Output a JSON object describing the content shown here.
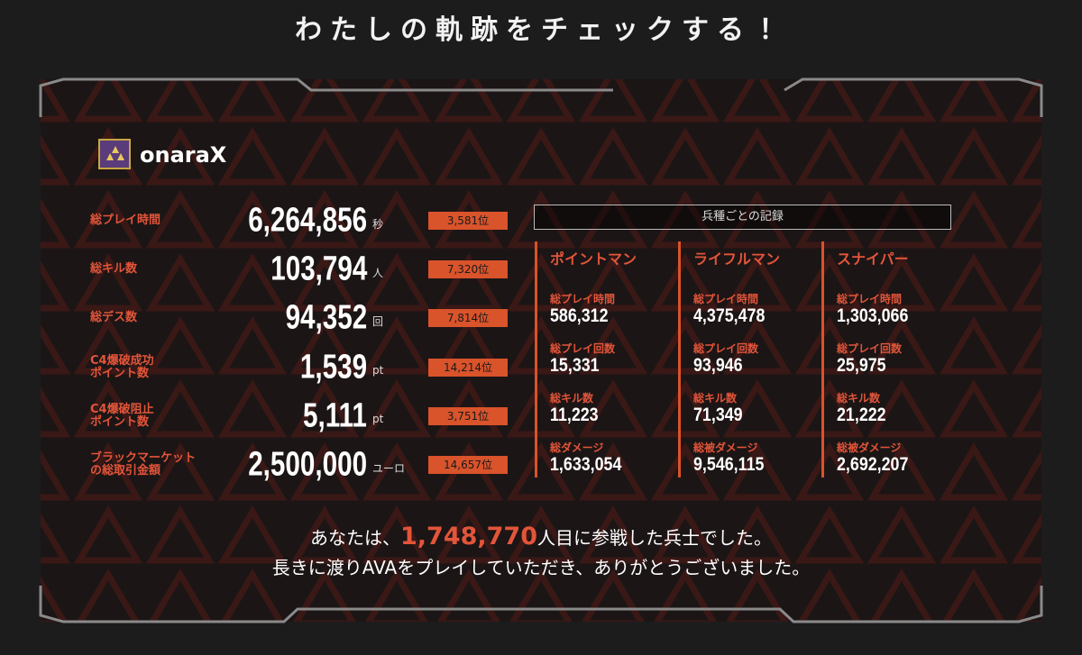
{
  "header": {
    "title": "わたしの軌跡をチェックする！"
  },
  "player": {
    "name": "onaraX"
  },
  "stats": [
    {
      "label": "総プレイ時間",
      "value": "6,264,856",
      "unit": "秒",
      "rank": "3,581位"
    },
    {
      "label": "総キル数",
      "value": "103,794",
      "unit": "人",
      "rank": "7,320位"
    },
    {
      "label": "総デス数",
      "value": "94,352",
      "unit": "回",
      "rank": "7,814位"
    },
    {
      "label": "C4爆破成功\nポイント数",
      "value": "1,539",
      "unit": "pt",
      "rank": "14,214位"
    },
    {
      "label": "C4爆破阻止\nポイント数",
      "value": "5,111",
      "unit": "pt",
      "rank": "3,751位"
    },
    {
      "label": "ブラックマーケット\nの総取引金額",
      "value": "2,500,000",
      "unit": "ユーロ",
      "rank": "14,657位"
    }
  ],
  "classes": {
    "title": "兵種ごとの記録",
    "columns": [
      {
        "name": "ポイントマン",
        "items": [
          {
            "label": "総プレイ時間",
            "value": "586,312"
          },
          {
            "label": "総プレイ回数",
            "value": "15,331"
          },
          {
            "label": "総キル数",
            "value": "11,223"
          },
          {
            "label": "総ダメージ",
            "value": "1,633,054"
          }
        ]
      },
      {
        "name": "ライフルマン",
        "items": [
          {
            "label": "総プレイ時間",
            "value": "4,375,478"
          },
          {
            "label": "総プレイ回数",
            "value": "93,946"
          },
          {
            "label": "総キル数",
            "value": "71,349"
          },
          {
            "label": "総被ダメージ",
            "value": "9,546,115"
          }
        ]
      },
      {
        "name": "スナイパー",
        "items": [
          {
            "label": "総プレイ時間",
            "value": "1,303,066"
          },
          {
            "label": "総プレイ回数",
            "value": "25,975"
          },
          {
            "label": "総キル数",
            "value": "21,222"
          },
          {
            "label": "総被ダメージ",
            "value": "2,692,207"
          }
        ]
      }
    ]
  },
  "footer": {
    "line1": {
      "before": "あなたは、",
      "number": "1,748,770",
      "after": "人目に参戦した兵士でした。"
    },
    "line2": "長きに渡りAVAをプレイしていただき、ありがとうございました。"
  }
}
